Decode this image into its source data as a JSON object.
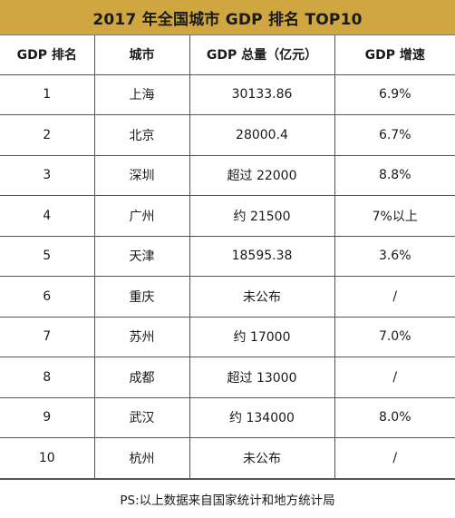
{
  "title": "2017 年全国城市 GDP 排名 TOP10",
  "headers": [
    "GDP 排名",
    "城市",
    "GDP 总量（亿元）",
    "GDP 增速"
  ],
  "rows": [
    {
      "rank": "1",
      "city": "上海",
      "total": "30133.86",
      "growth": "6.9%"
    },
    {
      "rank": "2",
      "city": "北京",
      "total": "28000.4",
      "growth": "6.7%"
    },
    {
      "rank": "3",
      "city": "深圳",
      "total": "超过 22000",
      "growth": "8.8%"
    },
    {
      "rank": "4",
      "city": "广州",
      "total": "约 21500",
      "growth": "7%以上"
    },
    {
      "rank": "5",
      "city": "天津",
      "total": "18595.38",
      "growth": "3.6%"
    },
    {
      "rank": "6",
      "city": "重庆",
      "total": "未公布",
      "growth": "/"
    },
    {
      "rank": "7",
      "city": "苏州",
      "total": "约 17000",
      "growth": "7.0%"
    },
    {
      "rank": "8",
      "city": "成都",
      "total": "超过 13000",
      "growth": "/"
    },
    {
      "rank": "9",
      "city": "武汉",
      "total": "约 134000",
      "growth": "8.0%"
    },
    {
      "rank": "10",
      "city": "杭州",
      "total": "未公布",
      "growth": "/"
    }
  ],
  "footnote": "PS:以上数据来自国家统计和地方统计局",
  "colors": {
    "title_background": "#cfa63f",
    "border": "#555555"
  }
}
